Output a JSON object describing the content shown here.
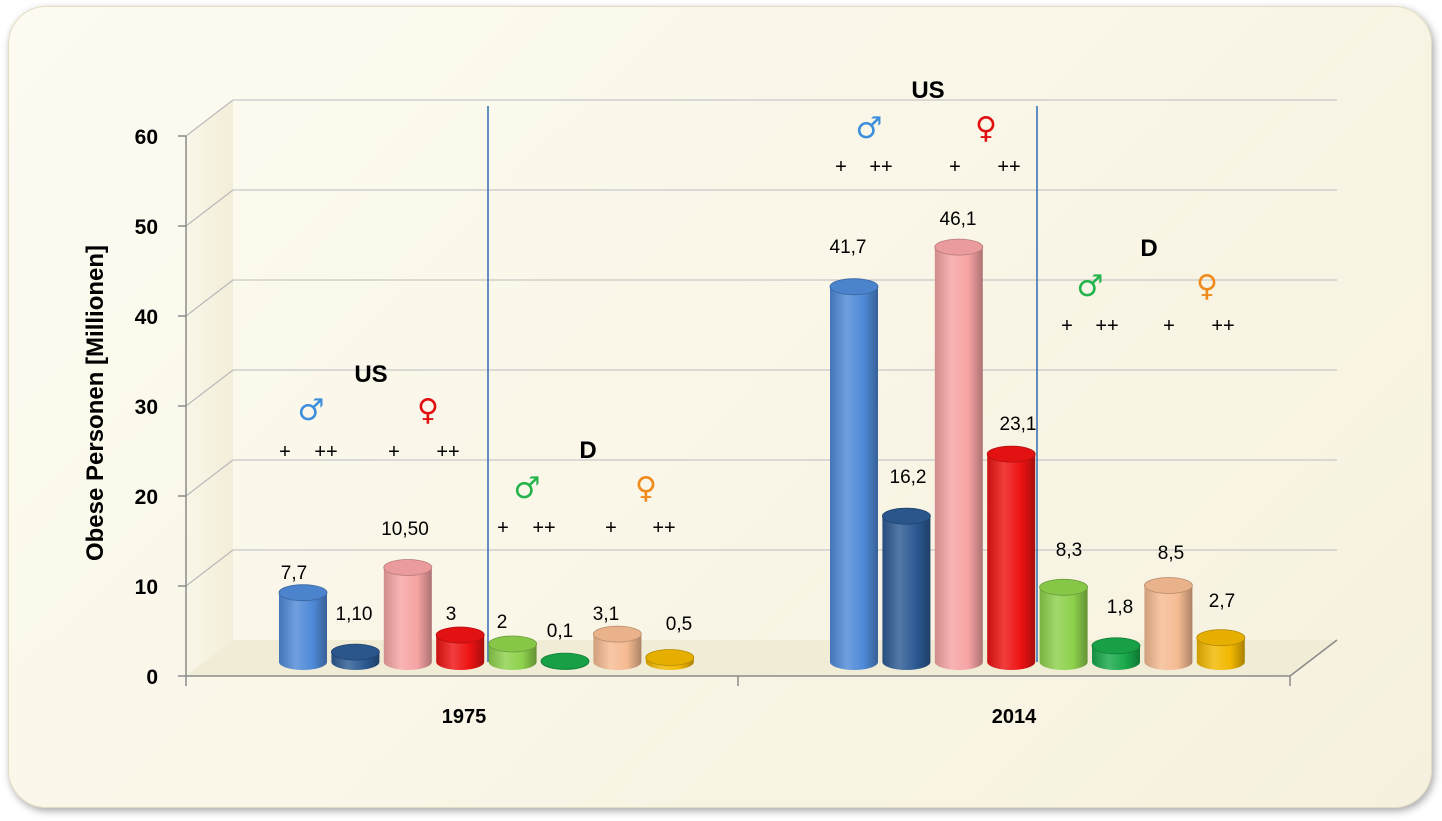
{
  "chart_data": {
    "type": "bar",
    "title": "",
    "ylabel": "Obese Personen [Millionen]",
    "xlabel": "",
    "ylim": [
      0,
      60
    ],
    "yticks": [
      0,
      10,
      20,
      30,
      40,
      50,
      60
    ],
    "categories": [
      "1975",
      "2014"
    ],
    "series": [
      {
        "color": "#4f8ad8",
        "values": [
          7.7,
          41.7
        ]
      },
      {
        "color": "#2c5a93",
        "values": [
          1.1,
          16.2
        ]
      },
      {
        "color": "#f6a3a3",
        "values": [
          10.5,
          46.1
        ]
      },
      {
        "color": "#ee1313",
        "values": [
          3,
          23.1
        ]
      },
      {
        "color": "#8ed14c",
        "values": [
          2,
          8.3
        ]
      },
      {
        "color": "#18a84a",
        "values": [
          0.1,
          1.8
        ]
      },
      {
        "color": "#f5bb92",
        "values": [
          3.1,
          8.5
        ]
      },
      {
        "color": "#f2b800",
        "values": [
          0.5,
          2.7
        ]
      }
    ],
    "data_labels": [
      [
        "7,7",
        "1,10",
        "10,50",
        "3",
        "2",
        "0,1",
        "3,1",
        "0,5"
      ],
      [
        "41,7",
        "16,2",
        "46,1",
        "23,1",
        "8,3",
        "1,8",
        "8,5",
        "2,7"
      ]
    ],
    "grid": true,
    "annotations": {
      "group_labels": [
        "US",
        "D"
      ],
      "male_symbol": "♂",
      "female_symbol": "♀",
      "plus_single": "+",
      "plus_double": "++",
      "symbol_colors": {
        "us_male": "#3d8fdc",
        "us_female": "#e01010",
        "d_male": "#22b34a",
        "d_female": "#f08a1c"
      }
    }
  }
}
